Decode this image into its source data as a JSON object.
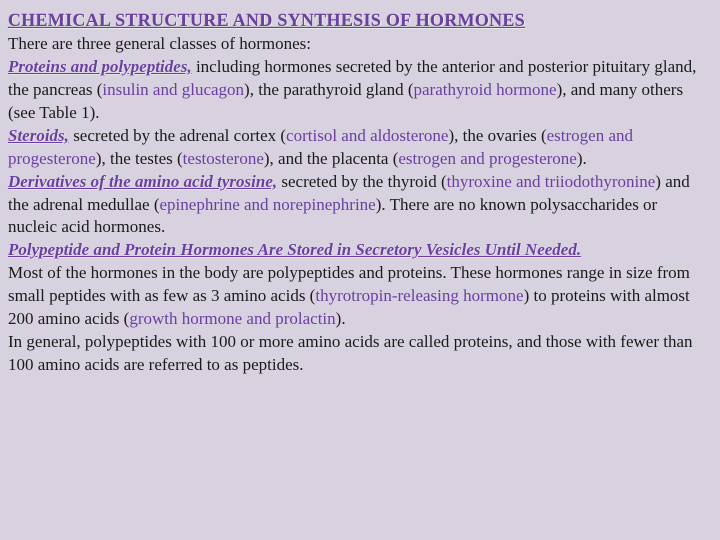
{
  "title": "CHEMICAL STRUCTURE AND SYNTHESIS OF HORMONES",
  "intro": "There are three general classes of hormones:",
  "sec1": {
    "head": "Proteins and polypeptides,",
    "t1": " including hormones secreted by the anterior and posterior pituitary gland, the pancreas (",
    "term1": "insulin and glucagon",
    "t2": "), the parathyroid gland (",
    "term2": "parathyroid hormone",
    "t3": "), and many others (see Table 1)."
  },
  "sec2": {
    "head": "Steroids,",
    "t1": " secreted by the adrenal cortex (",
    "term1": "cortisol and aldosterone",
    "t2": "), the ovaries (",
    "term2": "estrogen and progesterone",
    "t3": "), the testes (",
    "term3": "testosterone",
    "t4": "), and the placenta (",
    "term4": "estrogen and progesterone",
    "t5": ")."
  },
  "sec3": {
    "head": "Derivatives of the amino acid tyrosine,",
    "t1": " secreted by the thyroid (",
    "term1": "thyroxine and triiodothyronine",
    "t2": ") and the adrenal medullae (",
    "term2": "epinephrine and norepinephrine",
    "t3": "). There are no known polysaccharides or nucleic acid hormones."
  },
  "sec4": {
    "head": "Polypeptide and Protein Hormones Are Stored in Secretory Vesicles Until Needed.",
    "t1": "Most of the hormones in the body are polypeptides and proteins. These hormones range in size from small peptides with as few as 3 amino acids (",
    "term1": "thyrotropin-releasing hormone",
    "t2": ") to proteins with almost 200 amino acids (",
    "term2": "growth hormone and prolactin",
    "t3": ").",
    "t4": "In general, polypeptides with 100 or more amino acids are called proteins, and those with fewer than 100 amino acids are referred to as peptides."
  }
}
